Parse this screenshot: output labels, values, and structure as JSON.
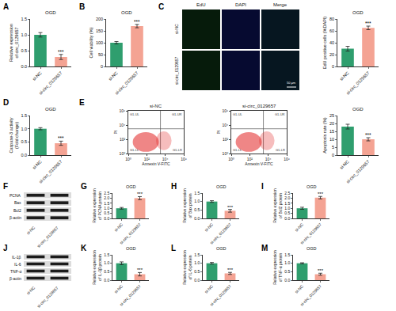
{
  "chart_data": [
    {
      "label": "A",
      "type": "bar",
      "title": "OGD",
      "y_label": "Relative expression\nof circ_0129657",
      "categories": [
        "si-NC",
        "si-circ_0129657"
      ],
      "values": [
        1.0,
        0.3
      ],
      "errors": [
        0.07,
        0.08
      ],
      "colors": [
        "#2f9e6e",
        "#f4a393"
      ],
      "ylim": [
        0,
        1.5
      ],
      "yticks": [
        {
          "value": 0,
          "label": "0.0"
        },
        {
          "value": 0.5,
          "label": "0.5"
        },
        {
          "value": 1,
          "label": "1.0"
        },
        {
          "value": 1.5,
          "label": "1.5"
        }
      ],
      "annotations": [
        {
          "category": "si-circ_0129657",
          "text": "***"
        }
      ]
    },
    {
      "label": "B",
      "type": "bar",
      "title": "OGD",
      "y_label": "Cell viability (%)",
      "categories": [
        "si-NC",
        "si-circ_0129657"
      ],
      "values": [
        100,
        170
      ],
      "errors": [
        5,
        7
      ],
      "colors": [
        "#2f9e6e",
        "#f4a393"
      ],
      "ylim": [
        0,
        200
      ],
      "yticks": [
        0,
        50,
        100,
        150,
        200
      ],
      "annotations": [
        {
          "category": "si-circ_0129657",
          "text": "***"
        }
      ]
    },
    {
      "label": "C",
      "type": "image",
      "columns": [
        "EdU",
        "DAPI",
        "Merge"
      ],
      "rows": [
        "si-NC",
        "si-circ_0129657"
      ],
      "scale_bar": "50 μm"
    },
    {
      "type": "bar",
      "title": "OGD",
      "y_label": "EdU positive cells (%DAPI)",
      "categories": [
        "si-NC",
        "si-circ_0129657"
      ],
      "values": [
        30,
        65
      ],
      "errors": [
        4,
        3
      ],
      "colors": [
        "#2f9e6e",
        "#f4a393"
      ],
      "ylim": [
        0,
        80
      ],
      "yticks": [
        0,
        20,
        40,
        60,
        80
      ],
      "annotations": [
        {
          "category": "si-circ_0129657",
          "text": "***"
        }
      ]
    },
    {
      "label": "D",
      "type": "bar",
      "title": "OGD",
      "y_label": "Caspase-3 activity\n(Fold change)",
      "categories": [
        "si-NC",
        "si-circ_0129657"
      ],
      "values": [
        1.0,
        0.45
      ],
      "errors": [
        0.04,
        0.08
      ],
      "colors": [
        "#2f9e6e",
        "#f4a393"
      ],
      "ylim": [
        0,
        1.5
      ],
      "yticks": [
        {
          "value": 0,
          "label": "0.0"
        },
        {
          "value": 0.5,
          "label": "0.5"
        },
        {
          "value": 1,
          "label": "1.0"
        },
        {
          "value": 1.5,
          "label": "1.5"
        }
      ],
      "annotations": [
        {
          "category": "si-circ_0129657",
          "text": "***"
        }
      ]
    },
    {
      "label": "E",
      "type": "flow",
      "samples": [
        "si-NC",
        "si-circ_0129657"
      ],
      "x_label": "Annexin V-FITC",
      "y_label": "PI",
      "log": true,
      "xlim": [
        1,
        1000000
      ],
      "ylim": [
        1,
        1000000
      ],
      "xticks": [
        {
          "value": 1,
          "label": "10⁰"
        },
        {
          "value": 100,
          "label": "10²"
        },
        {
          "value": 10000,
          "label": "10⁴"
        },
        {
          "value": 1000000,
          "label": "10⁶"
        }
      ],
      "yticks": [
        {
          "value": 1,
          "label": "10⁰"
        },
        {
          "value": 100,
          "label": "10²"
        },
        {
          "value": 10000,
          "label": "10⁴"
        },
        {
          "value": 1000000,
          "label": "10⁶"
        }
      ],
      "gate": [
        3000,
        3000
      ],
      "quadrants": [
        "G1-UL",
        "G1-UR",
        "G1-LL",
        "G1-LR"
      ]
    },
    {
      "type": "bar",
      "title": "OGD",
      "y_label": "Apoptosis rate (%)",
      "categories": [
        "si-NC",
        "si-circ_0129657"
      ],
      "values": [
        18,
        10
      ],
      "errors": [
        1.5,
        1
      ],
      "colors": [
        "#2f9e6e",
        "#f4a393"
      ],
      "ylim": [
        0,
        25
      ],
      "yticks": [
        0,
        5,
        10,
        15,
        20,
        25
      ],
      "annotations": [
        {
          "category": "si-circ_0129657",
          "text": "***"
        }
      ]
    },
    {
      "label": "F",
      "type": "blot",
      "bands": [
        "PCNA",
        "Bax",
        "Bcl2",
        "β-actin"
      ],
      "lanes": [
        "si-NC",
        "si-circ_0129657"
      ]
    },
    {
      "label": "G",
      "type": "bar",
      "title": "OGD",
      "y_label": "Relative expression\nof PCNA protein",
      "categories": [
        "si-NC",
        "si-circ_0129657"
      ],
      "values": [
        1.0,
        2.0
      ],
      "errors": [
        0.08,
        0.15
      ],
      "colors": [
        "#2f9e6e",
        "#f4a393"
      ],
      "ylim": [
        0,
        2.5
      ],
      "yticks": [
        {
          "value": 0,
          "label": "0.0"
        },
        {
          "value": 0.5,
          "label": "0.5"
        },
        {
          "value": 1,
          "label": "1.0"
        },
        {
          "value": 1.5,
          "label": "1.5"
        },
        {
          "value": 2,
          "label": "2.0"
        },
        {
          "value": 2.5,
          "label": "2.5"
        }
      ],
      "annotations": [
        {
          "category": "si-circ_0129657",
          "text": "***"
        }
      ]
    },
    {
      "label": "H",
      "type": "bar",
      "title": "OGD",
      "y_label": "Relative expression\nof Bax protein",
      "categories": [
        "si-NC",
        "si-circ_0129657"
      ],
      "values": [
        1.0,
        0.45
      ],
      "errors": [
        0.05,
        0.08
      ],
      "colors": [
        "#2f9e6e",
        "#f4a393"
      ],
      "ylim": [
        0,
        1.5
      ],
      "yticks": [
        {
          "value": 0,
          "label": "0.0"
        },
        {
          "value": 0.5,
          "label": "0.5"
        },
        {
          "value": 1,
          "label": "1.0"
        },
        {
          "value": 1.5,
          "label": "1.5"
        }
      ],
      "annotations": [
        {
          "category": "si-circ_0129657",
          "text": "***"
        }
      ]
    },
    {
      "label": "I",
      "type": "bar",
      "title": "OGD",
      "y_label": "Relative expression\nof Bcl2 protein",
      "categories": [
        "si-NC",
        "si-circ_0129657"
      ],
      "values": [
        1.0,
        2.05
      ],
      "errors": [
        0.1,
        0.12
      ],
      "colors": [
        "#2f9e6e",
        "#f4a393"
      ],
      "ylim": [
        0,
        2.5
      ],
      "yticks": [
        {
          "value": 0,
          "label": "0.0"
        },
        {
          "value": 0.5,
          "label": "0.5"
        },
        {
          "value": 1,
          "label": "1.0"
        },
        {
          "value": 1.5,
          "label": "1.5"
        },
        {
          "value": 2,
          "label": "2.0"
        },
        {
          "value": 2.5,
          "label": "2.5"
        }
      ],
      "annotations": [
        {
          "category": "si-circ_0129657",
          "text": "***"
        }
      ]
    },
    {
      "label": "J",
      "type": "blot",
      "bands": [
        "IL-1β",
        "IL-6",
        "TNF-α",
        "β-actin"
      ],
      "lanes": [
        "si-NC",
        "si-circ_0129657"
      ]
    },
    {
      "label": "K",
      "type": "bar",
      "title": "OGD",
      "y_label": "Relative expression\nof IL-1β protein",
      "categories": [
        "si-NC",
        "si-circ_0129657"
      ],
      "values": [
        1.0,
        0.35
      ],
      "errors": [
        0.08,
        0.1
      ],
      "colors": [
        "#2f9e6e",
        "#f4a393"
      ],
      "ylim": [
        0,
        1.5
      ],
      "yticks": [
        {
          "value": 0,
          "label": "0.0"
        },
        {
          "value": 0.5,
          "label": "0.5"
        },
        {
          "value": 1,
          "label": "1.0"
        },
        {
          "value": 1.5,
          "label": "1.5"
        }
      ],
      "annotations": [
        {
          "category": "si-circ_0129657",
          "text": "***"
        }
      ]
    },
    {
      "label": "L",
      "type": "bar",
      "title": "OGD",
      "y_label": "Relative expression\nof IL-6 protein",
      "categories": [
        "si-NC",
        "si-circ_0129657"
      ],
      "values": [
        1.0,
        0.4
      ],
      "errors": [
        0.05,
        0.06
      ],
      "colors": [
        "#2f9e6e",
        "#f4a393"
      ],
      "ylim": [
        0,
        1.5
      ],
      "yticks": [
        {
          "value": 0,
          "label": "0.0"
        },
        {
          "value": 0.5,
          "label": "0.5"
        },
        {
          "value": 1,
          "label": "1.0"
        },
        {
          "value": 1.5,
          "label": "1.5"
        }
      ],
      "annotations": [
        {
          "category": "si-circ_0129657",
          "text": "***"
        }
      ]
    },
    {
      "label": "M",
      "type": "bar",
      "title": "OGD",
      "y_label": "Relative expression\nof TNF-α protein",
      "categories": [
        "si-NC",
        "si-circ_0129657"
      ],
      "values": [
        1.0,
        0.35
      ],
      "errors": [
        0.03,
        0.06
      ],
      "colors": [
        "#2f9e6e",
        "#f4a393"
      ],
      "ylim": [
        0,
        1.5
      ],
      "yticks": [
        {
          "value": 0,
          "label": "0.0"
        },
        {
          "value": 0.5,
          "label": "0.5"
        },
        {
          "value": 1,
          "label": "1.0"
        },
        {
          "value": 1.5,
          "label": "1.5"
        }
      ],
      "annotations": [
        {
          "category": "si-circ_0129657",
          "text": "***"
        }
      ]
    }
  ]
}
